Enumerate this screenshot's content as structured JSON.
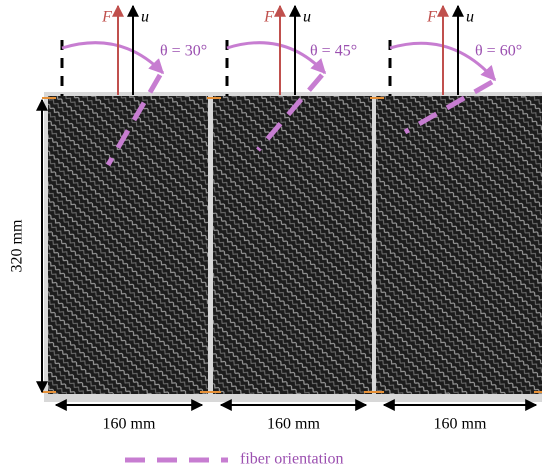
{
  "panels": [
    {
      "force": "F",
      "displacement": "u",
      "angle": "θ = 30°",
      "width": "160 mm"
    },
    {
      "force": "F",
      "displacement": "u",
      "angle": "θ = 45°",
      "width": "160 mm"
    },
    {
      "force": "F",
      "displacement": "u",
      "angle": "θ = 60°",
      "width": "160 mm"
    }
  ],
  "height_label": "320 mm",
  "legend": "fiber orientation"
}
